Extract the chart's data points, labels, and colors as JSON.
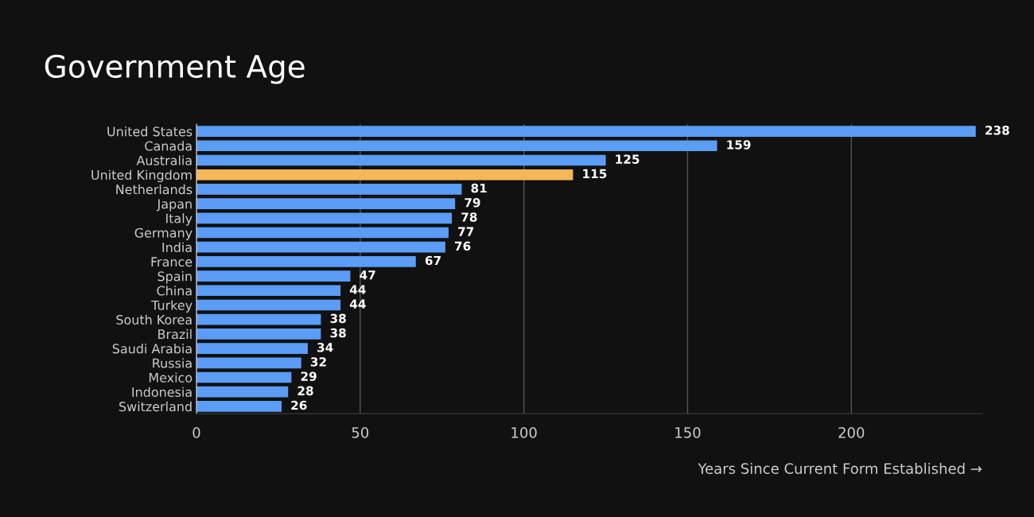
{
  "chart_data": {
    "type": "bar",
    "orientation": "horizontal",
    "title": "Government Age",
    "xlabel": "Years Since Current Form Established →",
    "categories": [
      "United States",
      "Canada",
      "Australia",
      "United Kingdom",
      "Netherlands",
      "Japan",
      "Italy",
      "Germany",
      "India",
      "France",
      "Spain",
      "China",
      "Turkey",
      "South Korea",
      "Brazil",
      "Saudi Arabia",
      "Russia",
      "Mexico",
      "Indonesia",
      "Switzerland"
    ],
    "values": [
      238,
      159,
      125,
      115,
      81,
      79,
      78,
      77,
      76,
      67,
      47,
      44,
      44,
      38,
      38,
      34,
      32,
      29,
      28,
      26
    ],
    "colors": [
      "#5b9cf6",
      "#5b9cf6",
      "#5b9cf6",
      "#f6b756",
      "#5b9cf6",
      "#5b9cf6",
      "#5b9cf6",
      "#5b9cf6",
      "#5b9cf6",
      "#5b9cf6",
      "#5b9cf6",
      "#5b9cf6",
      "#5b9cf6",
      "#5b9cf6",
      "#5b9cf6",
      "#5b9cf6",
      "#5b9cf6",
      "#5b9cf6",
      "#5b9cf6",
      "#5b9cf6"
    ],
    "xlim": [
      0,
      240
    ],
    "xticks": [
      0,
      50,
      100,
      150,
      200
    ],
    "grid": "x",
    "data_labels": true
  }
}
